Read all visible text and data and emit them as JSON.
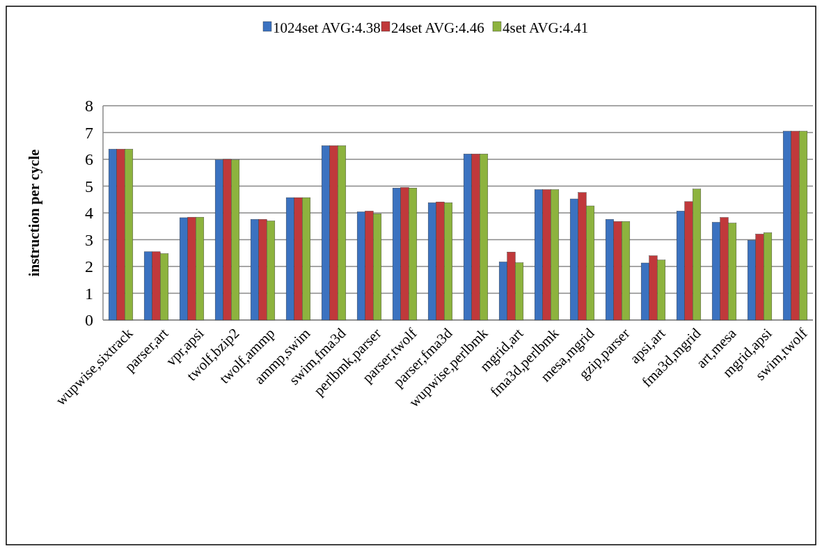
{
  "chart_data": {
    "type": "bar",
    "ylabel": "instruction per cycle",
    "categories": [
      "wupwise,sixtrack",
      "parser,art",
      "vpr,apsi",
      "twolf,bzip2",
      "twolf,ammp",
      "ammp,swim",
      "swim,fma3d",
      "perlbmk,parser",
      "parser,twolf",
      "parser,fma3d",
      "wupwise,perlbmk",
      "mgrid,art",
      "fma3d,perlbmk",
      "mesa,mgrid",
      "gzip,parser",
      "apsi,art",
      "fma3d,mgrid",
      "art,mesa",
      "mgrid,apsi",
      "swim,twolf"
    ],
    "series": [
      {
        "name": "1024set AVG:4.38",
        "color": "#3b72c0",
        "values": [
          6.38,
          2.55,
          3.82,
          5.98,
          3.76,
          4.57,
          6.51,
          4.04,
          4.93,
          4.38,
          6.2,
          2.17,
          4.87,
          4.52,
          3.76,
          2.13,
          4.07,
          3.65,
          2.98,
          7.05
        ]
      },
      {
        "name": "24set AVG:4.46",
        "color": "#c0393b",
        "values": [
          6.38,
          2.55,
          3.84,
          6.0,
          3.76,
          4.57,
          6.51,
          4.07,
          4.95,
          4.41,
          6.2,
          2.54,
          4.87,
          4.76,
          3.68,
          2.4,
          4.42,
          3.83,
          3.21,
          7.05
        ]
      },
      {
        "name": "4set AVG:4.41",
        "color": "#8db33e",
        "values": [
          6.38,
          2.48,
          3.84,
          5.98,
          3.7,
          4.57,
          6.51,
          3.97,
          4.93,
          4.38,
          6.2,
          2.14,
          4.87,
          4.26,
          3.68,
          2.24,
          4.89,
          3.62,
          3.26,
          7.05
        ]
      }
    ],
    "ylim": [
      0,
      8
    ],
    "yticks": [
      0,
      1,
      2,
      3,
      4,
      5,
      6,
      7,
      8
    ],
    "grid": "y",
    "legend": "top"
  }
}
